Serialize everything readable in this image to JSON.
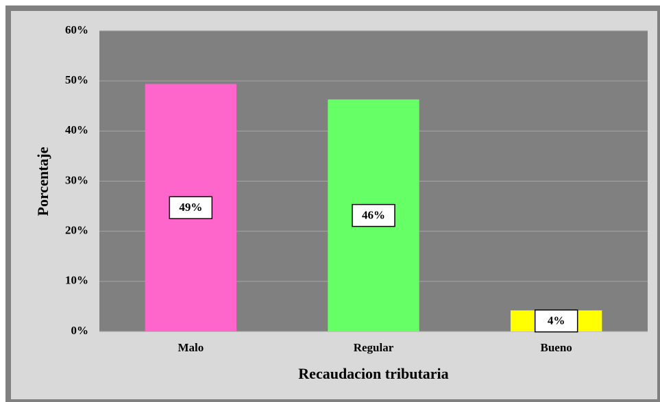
{
  "chart_data": {
    "type": "bar",
    "categories": [
      "Malo",
      "Regular",
      "Bueno"
    ],
    "values": [
      49.4,
      46.3,
      4.2
    ],
    "value_labels": [
      "49%",
      "46%",
      "4%"
    ],
    "colors": [
      "#ff66cc",
      "#66ff66",
      "#ffff00"
    ],
    "xlabel": "Recaudacion tributaria",
    "ylabel": "Porcentaje",
    "ylim": [
      0,
      60
    ],
    "yticks": [
      {
        "value": 0,
        "label": "0%"
      },
      {
        "value": 10,
        "label": "10%"
      },
      {
        "value": 20,
        "label": "20%"
      },
      {
        "value": 30,
        "label": "30%"
      },
      {
        "value": 40,
        "label": "40%"
      },
      {
        "value": 50,
        "label": "50%"
      },
      {
        "value": 60,
        "label": "60%"
      }
    ],
    "grid": true
  }
}
